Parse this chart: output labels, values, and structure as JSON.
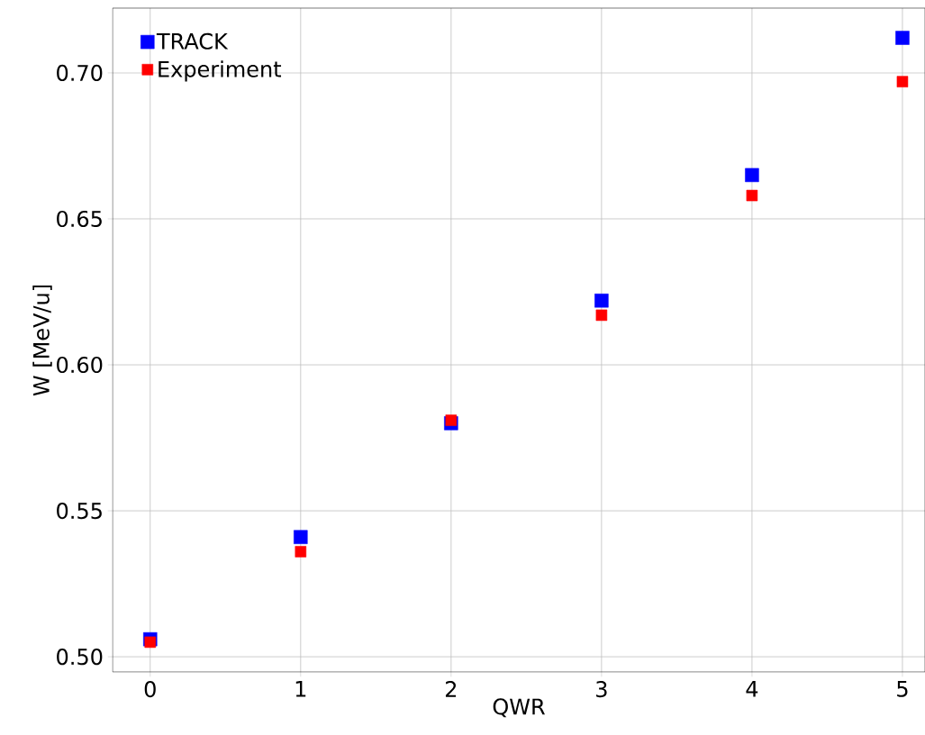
{
  "chart_data": {
    "type": "scatter",
    "xlabel": "QWR",
    "ylabel": "W [MeV/u]",
    "x": [
      0,
      1,
      2,
      3,
      4,
      5
    ],
    "series": [
      {
        "name": "TRACK",
        "color": "#0000ff",
        "values": [
          0.506,
          0.541,
          0.58,
          0.622,
          0.665,
          0.712
        ]
      },
      {
        "name": "Experiment",
        "color": "#ff0000",
        "values": [
          0.505,
          0.536,
          0.581,
          0.617,
          0.658,
          0.697
        ]
      }
    ],
    "xlim": [
      -0.25,
      5.15
    ],
    "ylim": [
      0.4948,
      0.7222
    ],
    "xticks": [
      0,
      1,
      2,
      3,
      4,
      5
    ],
    "yticks": [
      {
        "value": 0.5,
        "label": "0.50"
      },
      {
        "value": 0.55,
        "label": "0.55"
      },
      {
        "value": 0.6,
        "label": "0.60"
      },
      {
        "value": 0.65,
        "label": "0.65"
      },
      {
        "value": 0.7,
        "label": "0.70"
      }
    ],
    "grid": true,
    "legend": "top left",
    "marker": "square"
  }
}
